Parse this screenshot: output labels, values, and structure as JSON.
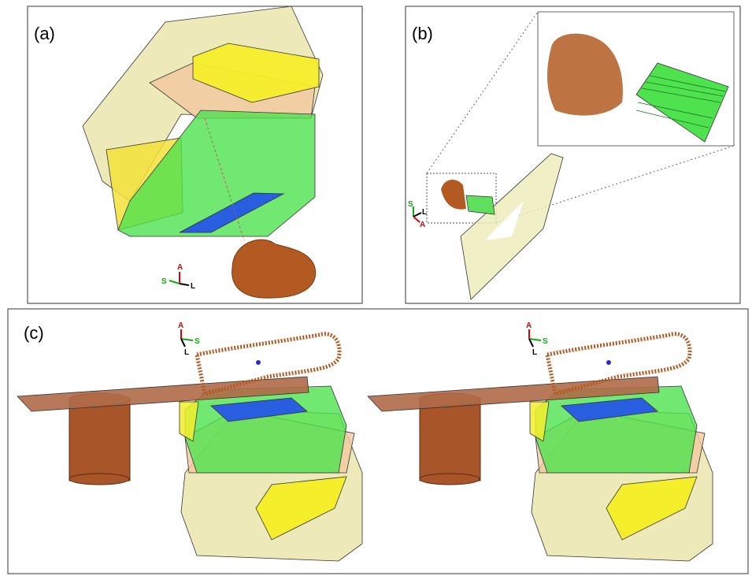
{
  "panels": [
    {
      "label": "(a)",
      "orientation": [
        "A",
        "S",
        "L"
      ]
    },
    {
      "label": "(b)",
      "orientation": [
        "S",
        "L",
        "A"
      ]
    },
    {
      "label": "(c)",
      "orientations": [
        [
          "A",
          "S",
          "L"
        ],
        [
          "A",
          "S",
          "L"
        ]
      ]
    }
  ]
}
